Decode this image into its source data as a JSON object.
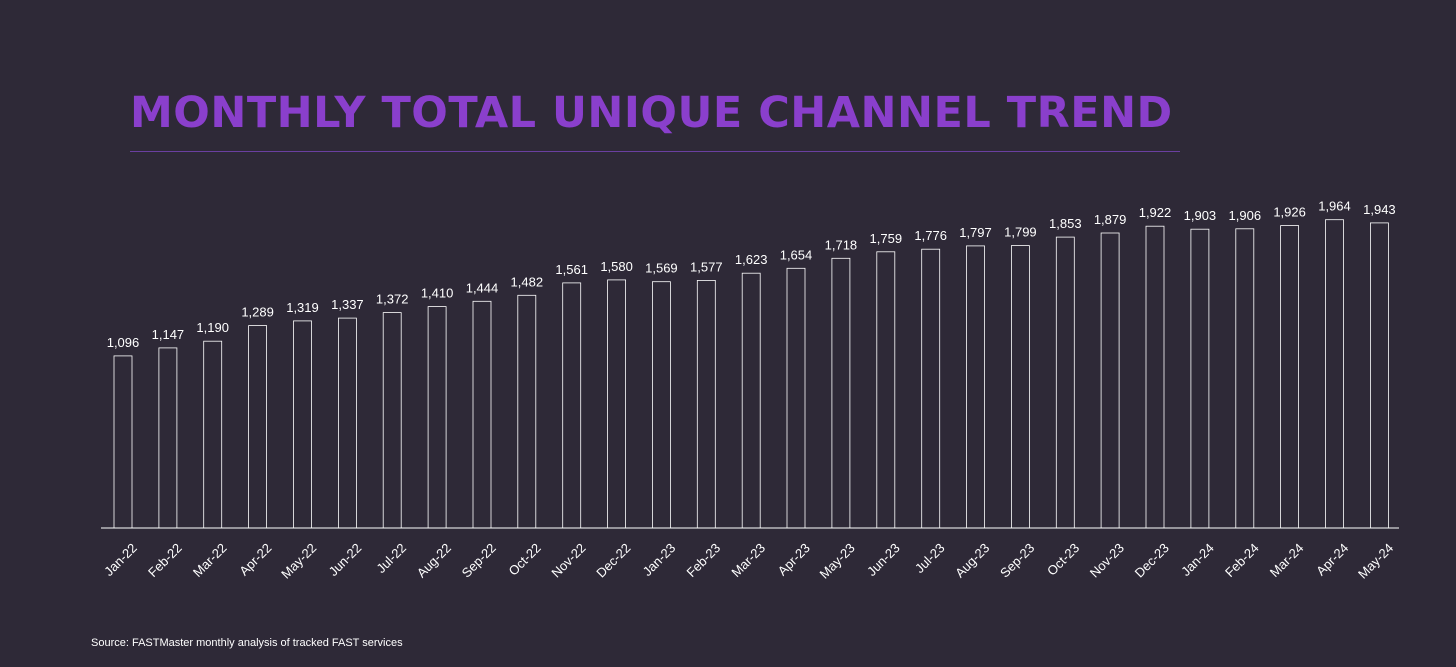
{
  "colors": {
    "background": "#2e2937",
    "title": "#8a3fcc",
    "title_rule": "#6a3fa0",
    "bar_outline": "#ffffff",
    "text": "#ffffff"
  },
  "source_note": "Source: FASTMaster monthly analysis of tracked FAST services",
  "chart_data": {
    "type": "bar",
    "title": "MONTHLY TOTAL UNIQUE CHANNEL TREND",
    "xlabel": "",
    "ylabel": "",
    "grid": false,
    "legend": "none",
    "ylim": [
      0,
      2000
    ],
    "categories": [
      "Jan-22",
      "Feb-22",
      "Mar-22",
      "Apr-22",
      "May-22",
      "Jun-22",
      "Jul-22",
      "Aug-22",
      "Sep-22",
      "Oct-22",
      "Nov-22",
      "Dec-22",
      "Jan-23",
      "Feb-23",
      "Mar-23",
      "Apr-23",
      "May-23",
      "Jun-23",
      "Jul-23",
      "Aug-23",
      "Sep-23",
      "Oct-23",
      "Nov-23",
      "Dec-23",
      "Jan-24",
      "Feb-24",
      "Mar-24",
      "Apr-24",
      "May-24"
    ],
    "values": [
      1096,
      1147,
      1190,
      1289,
      1319,
      1337,
      1372,
      1410,
      1444,
      1482,
      1561,
      1580,
      1569,
      1577,
      1623,
      1654,
      1718,
      1759,
      1776,
      1797,
      1799,
      1853,
      1879,
      1922,
      1903,
      1906,
      1926,
      1964,
      1943
    ],
    "value_labels": [
      "1,096",
      "1,147",
      "1,190",
      "1,289",
      "1,319",
      "1,337",
      "1,372",
      "1,410",
      "1,444",
      "1,482",
      "1,561",
      "1,580",
      "1,569",
      "1,577",
      "1,623",
      "1,654",
      "1,718",
      "1,759",
      "1,776",
      "1,797",
      "1,799",
      "1,853",
      "1,879",
      "1,922",
      "1,903",
      "1,906",
      "1,926",
      "1,964",
      "1,943"
    ]
  }
}
